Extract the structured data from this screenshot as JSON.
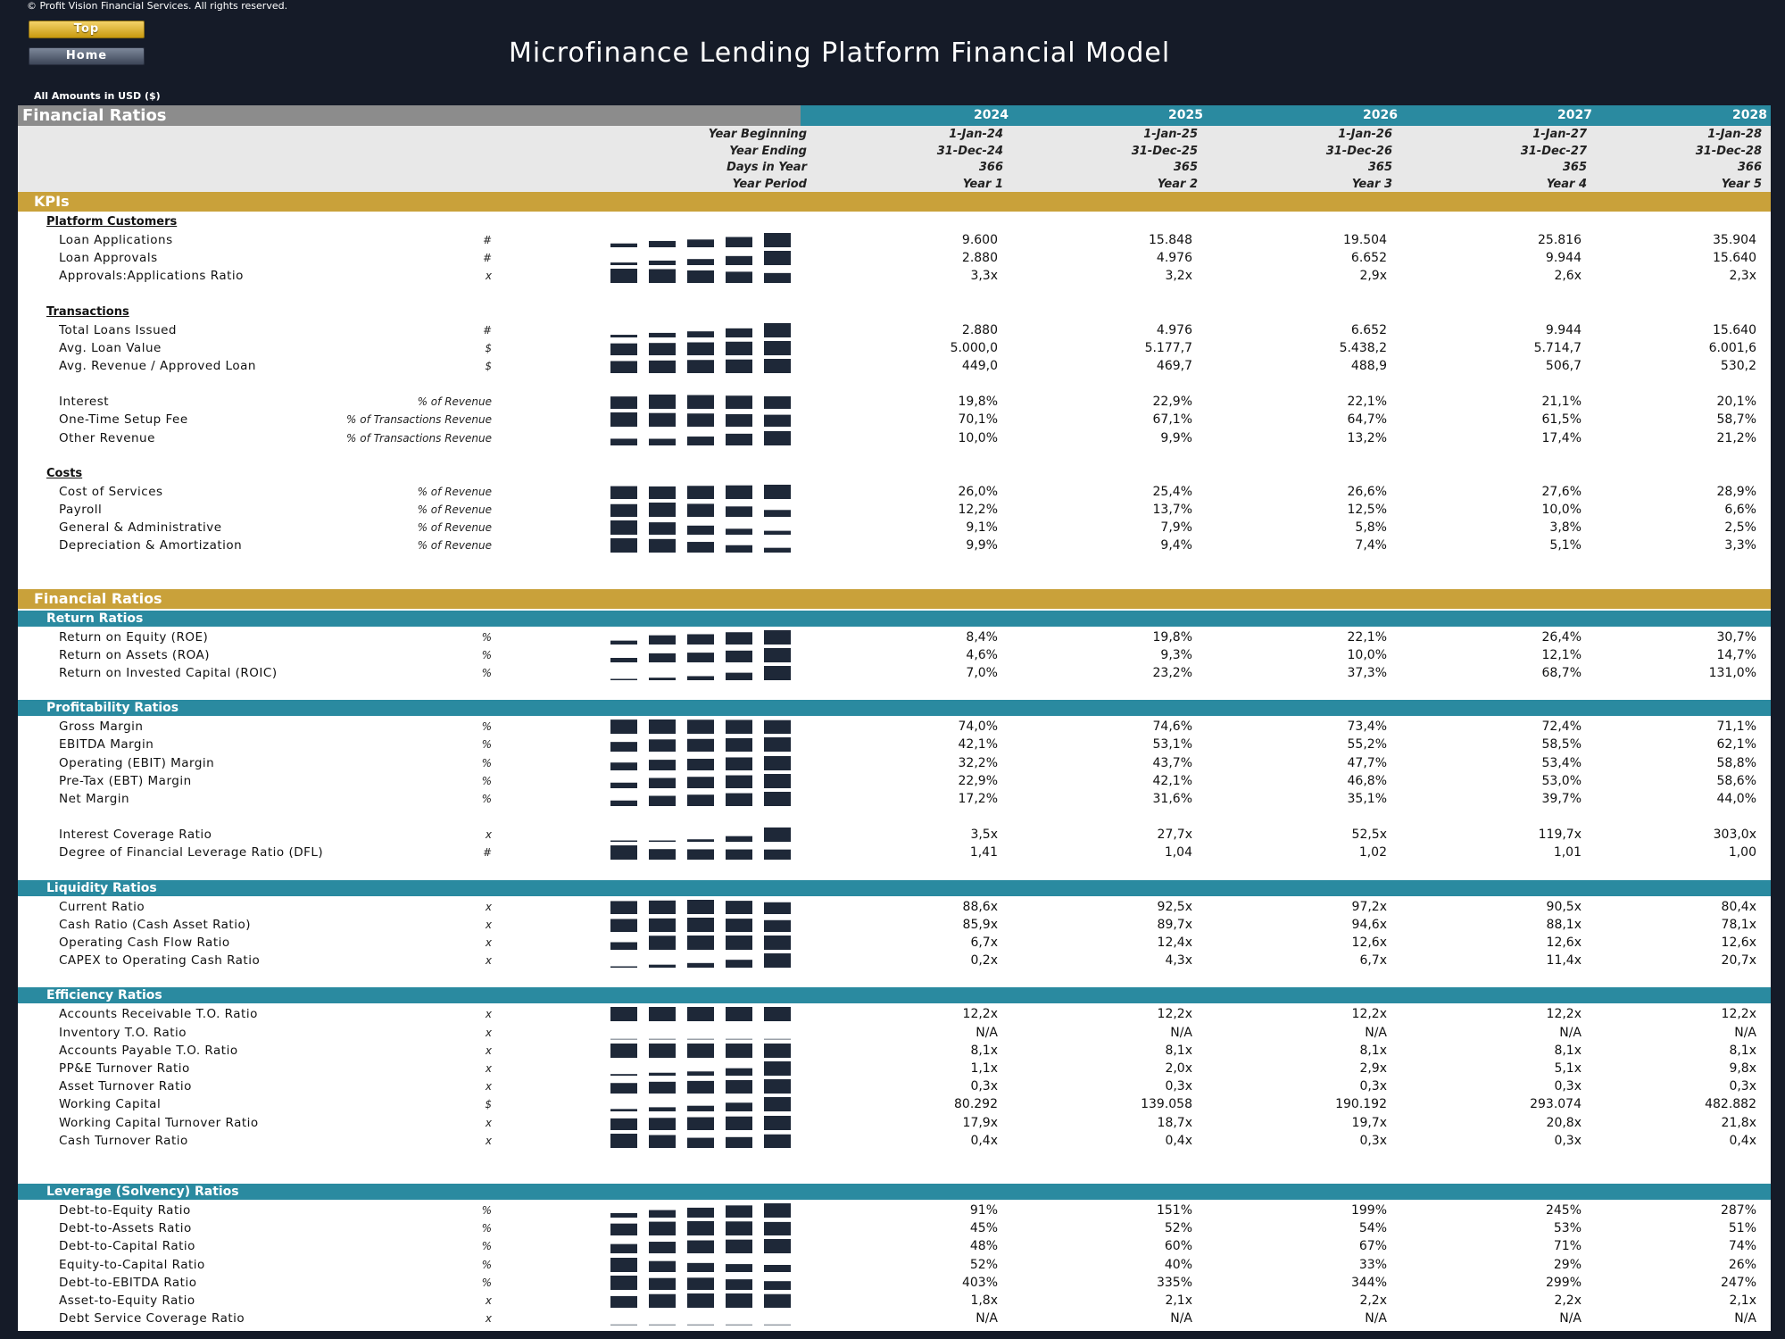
{
  "copyright": "© Profit Vision Financial Services. All rights reserved.",
  "buttons": {
    "top": "Top",
    "home": "Home"
  },
  "title": "Microfinance Lending Platform Financial Model",
  "amounts_note": "All Amounts in  USD ($)",
  "sheet_title": "Financial Ratios",
  "years": [
    "2024",
    "2025",
    "2026",
    "2027",
    "2028"
  ],
  "year_info": {
    "labels": [
      "Year Beginning",
      "Year Ending",
      "Days in Year",
      "Year Period"
    ],
    "rows": [
      [
        "1-Jan-24",
        "1-Jan-25",
        "1-Jan-26",
        "1-Jan-27",
        "1-Jan-28"
      ],
      [
        "31-Dec-24",
        "31-Dec-25",
        "31-Dec-26",
        "31-Dec-27",
        "31-Dec-28"
      ],
      [
        "366",
        "365",
        "365",
        "365",
        "366"
      ],
      [
        "Year 1",
        "Year 2",
        "Year 3",
        "Year 4",
        "Year 5"
      ]
    ]
  },
  "colors": {
    "teal": "#2a8aa0",
    "gold": "#c9a13a",
    "navy": "#1e2838",
    "grey": "#8c8c8c"
  },
  "sections": [
    {
      "kind": "gold",
      "label": "KPIs"
    },
    {
      "kind": "sub",
      "label": "Platform Customers"
    },
    {
      "kind": "row",
      "label": "Loan Applications",
      "unit": "#",
      "values": [
        "9.600",
        "15.848",
        "19.504",
        "25.816",
        "35.904"
      ],
      "spark": [
        9600,
        15848,
        19504,
        25816,
        35904
      ]
    },
    {
      "kind": "row",
      "label": "Loan Approvals",
      "unit": "#",
      "values": [
        "2.880",
        "4.976",
        "6.652",
        "9.944",
        "15.640"
      ],
      "spark": [
        2880,
        4976,
        6652,
        9944,
        15640
      ]
    },
    {
      "kind": "row",
      "label": "Approvals:Applications Ratio",
      "unit": "x",
      "values": [
        "3,3x",
        "3,2x",
        "2,9x",
        "2,6x",
        "2,3x"
      ],
      "spark": [
        3.3,
        3.2,
        2.9,
        2.6,
        2.3
      ]
    },
    {
      "kind": "gap"
    },
    {
      "kind": "sub",
      "label": "Transactions"
    },
    {
      "kind": "row",
      "label": "Total Loans Issued",
      "unit": "#",
      "values": [
        "2.880",
        "4.976",
        "6.652",
        "9.944",
        "15.640"
      ],
      "spark": [
        2880,
        4976,
        6652,
        9944,
        15640
      ]
    },
    {
      "kind": "row",
      "label": "Avg. Loan Value",
      "unit": "$",
      "values": [
        "5.000,0",
        "5.177,7",
        "5.438,2",
        "5.714,7",
        "6.001,6"
      ],
      "spark": [
        5000,
        5177.7,
        5438.2,
        5714.7,
        6001.6
      ]
    },
    {
      "kind": "row",
      "label": "Avg. Revenue / Approved Loan",
      "unit": "$",
      "values": [
        "449,0",
        "469,7",
        "488,9",
        "506,7",
        "530,2"
      ],
      "spark": [
        449,
        469.7,
        488.9,
        506.7,
        530.2
      ]
    },
    {
      "kind": "gap"
    },
    {
      "kind": "row",
      "label": "Interest",
      "unit": "% of Revenue",
      "values": [
        "19,8%",
        "22,9%",
        "22,1%",
        "21,1%",
        "20,1%"
      ],
      "spark": [
        19.8,
        22.9,
        22.1,
        21.1,
        20.1
      ]
    },
    {
      "kind": "row",
      "label": "One-Time Setup Fee",
      "unit": "% of Transactions Revenue",
      "values": [
        "70,1%",
        "67,1%",
        "64,7%",
        "61,5%",
        "58,7%"
      ],
      "spark": [
        70.1,
        67.1,
        64.7,
        61.5,
        58.7
      ]
    },
    {
      "kind": "row",
      "label": "Other Revenue",
      "unit": "% of Transactions Revenue",
      "values": [
        "10,0%",
        "9,9%",
        "13,2%",
        "17,4%",
        "21,2%"
      ],
      "spark": [
        10.0,
        9.9,
        13.2,
        17.4,
        21.2
      ]
    },
    {
      "kind": "gap"
    },
    {
      "kind": "sub",
      "label": "Costs"
    },
    {
      "kind": "row",
      "label": "Cost of Services",
      "unit": "% of Revenue",
      "values": [
        "26,0%",
        "25,4%",
        "26,6%",
        "27,6%",
        "28,9%"
      ],
      "spark": [
        26.0,
        25.4,
        26.6,
        27.6,
        28.9
      ]
    },
    {
      "kind": "row",
      "label": "Payroll",
      "unit": "% of Revenue",
      "values": [
        "12,2%",
        "13,7%",
        "12,5%",
        "10,0%",
        "6,6%"
      ],
      "spark": [
        12.2,
        13.7,
        12.5,
        10.0,
        6.6
      ]
    },
    {
      "kind": "row",
      "label": "General & Administrative",
      "unit": "% of Revenue",
      "values": [
        "9,1%",
        "7,9%",
        "5,8%",
        "3,8%",
        "2,5%"
      ],
      "spark": [
        9.1,
        7.9,
        5.8,
        3.8,
        2.5
      ]
    },
    {
      "kind": "row",
      "label": "Depreciation & Amortization",
      "unit": "% of Revenue",
      "values": [
        "9,9%",
        "9,4%",
        "7,4%",
        "5,1%",
        "3,3%"
      ],
      "spark": [
        9.9,
        9.4,
        7.4,
        5.1,
        3.3
      ]
    },
    {
      "kind": "gap2"
    },
    {
      "kind": "gold",
      "label": "Financial Ratios"
    },
    {
      "kind": "teal",
      "label": "Return Ratios"
    },
    {
      "kind": "row",
      "label": "Return on Equity (ROE)",
      "unit": "%",
      "values": [
        "8,4%",
        "19,8%",
        "22,1%",
        "26,4%",
        "30,7%"
      ],
      "spark": [
        8.4,
        19.8,
        22.1,
        26.4,
        30.7
      ]
    },
    {
      "kind": "row",
      "label": "Return on Assets (ROA)",
      "unit": "%",
      "values": [
        "4,6%",
        "9,3%",
        "10,0%",
        "12,1%",
        "14,7%"
      ],
      "spark": [
        4.6,
        9.3,
        10.0,
        12.1,
        14.7
      ]
    },
    {
      "kind": "row",
      "label": "Return on Invested Capital (ROIC)",
      "unit": "%",
      "values": [
        "7,0%",
        "23,2%",
        "37,3%",
        "68,7%",
        "131,0%"
      ],
      "spark": [
        7.0,
        23.2,
        37.3,
        68.7,
        131.0
      ]
    },
    {
      "kind": "gap"
    },
    {
      "kind": "teal",
      "label": "Profitability Ratios"
    },
    {
      "kind": "row",
      "label": "Gross Margin",
      "unit": "%",
      "values": [
        "74,0%",
        "74,6%",
        "73,4%",
        "72,4%",
        "71,1%"
      ],
      "spark": [
        74.0,
        74.6,
        73.4,
        72.4,
        71.1
      ]
    },
    {
      "kind": "row",
      "label": "EBITDA Margin",
      "unit": "%",
      "values": [
        "42,1%",
        "53,1%",
        "55,2%",
        "58,5%",
        "62,1%"
      ],
      "spark": [
        42.1,
        53.1,
        55.2,
        58.5,
        62.1
      ]
    },
    {
      "kind": "row",
      "label": "Operating (EBIT) Margin",
      "unit": "%",
      "values": [
        "32,2%",
        "43,7%",
        "47,7%",
        "53,4%",
        "58,8%"
      ],
      "spark": [
        32.2,
        43.7,
        47.7,
        53.4,
        58.8
      ]
    },
    {
      "kind": "row",
      "label": "Pre-Tax (EBT) Margin",
      "unit": "%",
      "values": [
        "22,9%",
        "42,1%",
        "46,8%",
        "53,0%",
        "58,6%"
      ],
      "spark": [
        22.9,
        42.1,
        46.8,
        53.0,
        58.6
      ]
    },
    {
      "kind": "row",
      "label": "Net Margin",
      "unit": "%",
      "values": [
        "17,2%",
        "31,6%",
        "35,1%",
        "39,7%",
        "44,0%"
      ],
      "spark": [
        17.2,
        31.6,
        35.1,
        39.7,
        44.0
      ]
    },
    {
      "kind": "gap"
    },
    {
      "kind": "row",
      "label": "Interest Coverage Ratio",
      "unit": "x",
      "values": [
        "3,5x",
        "27,7x",
        "52,5x",
        "119,7x",
        "303,0x"
      ],
      "spark": [
        3.5,
        27.7,
        52.5,
        119.7,
        303.0
      ]
    },
    {
      "kind": "row",
      "label": "Degree of Financial Leverage Ratio (DFL)",
      "unit": "#",
      "values": [
        "1,41",
        "1,04",
        "1,02",
        "1,01",
        "1,00"
      ],
      "spark": [
        1.41,
        1.04,
        1.02,
        1.01,
        1.0
      ]
    },
    {
      "kind": "gap"
    },
    {
      "kind": "teal",
      "label": "Liquidity Ratios"
    },
    {
      "kind": "row",
      "label": "Current Ratio",
      "unit": "x",
      "values": [
        "88,6x",
        "92,5x",
        "97,2x",
        "90,5x",
        "80,4x"
      ],
      "spark": [
        88.6,
        92.5,
        97.2,
        90.5,
        80.4
      ]
    },
    {
      "kind": "row",
      "label": "Cash Ratio (Cash Asset Ratio)",
      "unit": "x",
      "values": [
        "85,9x",
        "89,7x",
        "94,6x",
        "88,1x",
        "78,1x"
      ],
      "spark": [
        85.9,
        89.7,
        94.6,
        88.1,
        78.1
      ]
    },
    {
      "kind": "row",
      "label": "Operating Cash Flow Ratio",
      "unit": "x",
      "values": [
        "6,7x",
        "12,4x",
        "12,6x",
        "12,6x",
        "12,6x"
      ],
      "spark": [
        6.7,
        12.4,
        12.6,
        12.6,
        12.6
      ]
    },
    {
      "kind": "row",
      "label": "CAPEX to Operating Cash Ratio",
      "unit": "x",
      "values": [
        "0,2x",
        "4,3x",
        "6,7x",
        "11,4x",
        "20,7x"
      ],
      "spark": [
        0.2,
        4.3,
        6.7,
        11.4,
        20.7
      ]
    },
    {
      "kind": "gap"
    },
    {
      "kind": "teal",
      "label": "Efficiency Ratios"
    },
    {
      "kind": "row",
      "label": "Accounts Receivable T.O. Ratio",
      "unit": "x",
      "values": [
        "12,2x",
        "12,2x",
        "12,2x",
        "12,2x",
        "12,2x"
      ],
      "spark": [
        12.2,
        12.2,
        12.2,
        12.2,
        12.2
      ]
    },
    {
      "kind": "row",
      "label": "Inventory T.O. Ratio",
      "unit": "x",
      "values": [
        "N/A",
        "N/A",
        "N/A",
        "N/A",
        "N/A"
      ],
      "spark": [
        0,
        0,
        0,
        0,
        0
      ]
    },
    {
      "kind": "row",
      "label": "Accounts Payable T.O. Ratio",
      "unit": "x",
      "values": [
        "8,1x",
        "8,1x",
        "8,1x",
        "8,1x",
        "8,1x"
      ],
      "spark": [
        8.1,
        8.1,
        8.1,
        8.1,
        8.1
      ]
    },
    {
      "kind": "row",
      "label": "PP&E Turnover Ratio",
      "unit": "x",
      "values": [
        "1,1x",
        "2,0x",
        "2,9x",
        "5,1x",
        "9,8x"
      ],
      "spark": [
        1.1,
        2.0,
        2.9,
        5.1,
        9.8
      ]
    },
    {
      "kind": "row",
      "label": "Asset Turnover Ratio",
      "unit": "x",
      "values": [
        "0,3x",
        "0,3x",
        "0,3x",
        "0,3x",
        "0,3x"
      ],
      "spark": [
        0.25,
        0.28,
        0.3,
        0.32,
        0.34
      ]
    },
    {
      "kind": "row",
      "label": "Working Capital",
      "unit": "$",
      "values": [
        "80.292",
        "139.058",
        "190.192",
        "293.074",
        "482.882"
      ],
      "spark": [
        80292,
        139058,
        190192,
        293074,
        482882
      ]
    },
    {
      "kind": "row",
      "label": "Working Capital Turnover Ratio",
      "unit": "x",
      "values": [
        "17,9x",
        "18,7x",
        "19,7x",
        "20,8x",
        "21,8x"
      ],
      "spark": [
        17.9,
        18.7,
        19.7,
        20.8,
        21.8
      ]
    },
    {
      "kind": "row",
      "label": "Cash Turnover Ratio",
      "unit": "x",
      "values": [
        "0,4x",
        "0,4x",
        "0,3x",
        "0,3x",
        "0,4x"
      ],
      "spark": [
        0.42,
        0.38,
        0.3,
        0.32,
        0.4
      ]
    },
    {
      "kind": "gap2"
    },
    {
      "kind": "teal",
      "label": "Leverage (Solvency) Ratios"
    },
    {
      "kind": "row",
      "label": "Debt-to-Equity Ratio",
      "unit": "%",
      "values": [
        "91%",
        "151%",
        "199%",
        "245%",
        "287%"
      ],
      "spark": [
        91,
        151,
        199,
        245,
        287
      ]
    },
    {
      "kind": "row",
      "label": "Debt-to-Assets Ratio",
      "unit": "%",
      "values": [
        "45%",
        "52%",
        "54%",
        "53%",
        "51%"
      ],
      "spark": [
        45,
        52,
        54,
        53,
        51
      ]
    },
    {
      "kind": "row",
      "label": "Debt-to-Capital Ratio",
      "unit": "%",
      "values": [
        "48%",
        "60%",
        "67%",
        "71%",
        "74%"
      ],
      "spark": [
        48,
        60,
        67,
        71,
        74
      ]
    },
    {
      "kind": "row",
      "label": "Equity-to-Capital Ratio",
      "unit": "%",
      "values": [
        "52%",
        "40%",
        "33%",
        "29%",
        "26%"
      ],
      "spark": [
        52,
        40,
        33,
        29,
        26
      ]
    },
    {
      "kind": "row",
      "label": "Debt-to-EBITDA Ratio",
      "unit": "%",
      "values": [
        "403%",
        "335%",
        "344%",
        "299%",
        "247%"
      ],
      "spark": [
        403,
        335,
        344,
        299,
        247
      ]
    },
    {
      "kind": "row",
      "label": "Asset-to-Equity Ratio",
      "unit": "x",
      "values": [
        "1,8x",
        "2,1x",
        "2,2x",
        "2,2x",
        "2,1x"
      ],
      "spark": [
        1.8,
        2.1,
        2.2,
        2.2,
        2.1
      ]
    },
    {
      "kind": "row",
      "label": "Debt Service Coverage Ratio",
      "unit": "x",
      "values": [
        "N/A",
        "N/A",
        "N/A",
        "N/A",
        "N/A"
      ],
      "spark": [
        0,
        0,
        0,
        0,
        0
      ]
    }
  ]
}
